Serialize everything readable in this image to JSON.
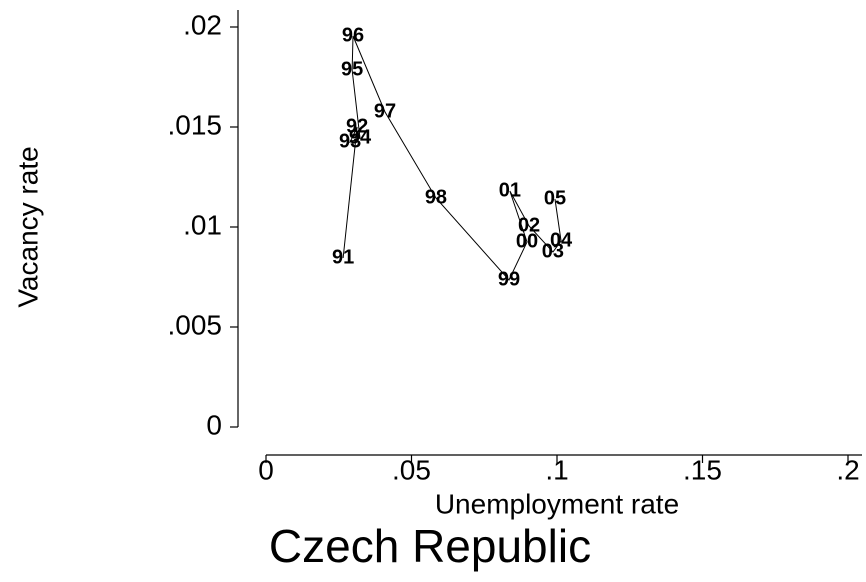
{
  "chart_data": {
    "type": "scatter",
    "connect": true,
    "title": "Czech Republic",
    "x_label": "Unemployment rate",
    "y_label": "Vacancy rate",
    "point_labels": [
      "91",
      "92",
      "93",
      "94",
      "95",
      "96",
      "97",
      "98",
      "99",
      "00",
      "01",
      "02",
      "03",
      "04",
      "05"
    ],
    "x": [
      0.0265,
      0.0313,
      0.0289,
      0.0323,
      0.0296,
      0.0299,
      0.0409,
      0.0584,
      0.0835,
      0.0897,
      0.0838,
      0.0904,
      0.0986,
      0.1014,
      0.0993
    ],
    "values": [
      0.00845,
      0.015,
      0.01425,
      0.01445,
      0.01785,
      0.01955,
      0.01575,
      0.01145,
      0.00735,
      0.00925,
      0.0118,
      0.01005,
      0.00875,
      0.0093,
      0.0114
    ],
    "color": "#000000",
    "xlim": [
      0,
      0.2
    ],
    "ylim": [
      0,
      0.02
    ],
    "xticks": [
      0,
      {
        "value": 0.05,
        "label": ".05"
      },
      {
        "value": 0.1,
        "label": ".1"
      },
      {
        "value": 0.15,
        "label": ".15"
      },
      {
        "value": 0.2,
        "label": ".2"
      }
    ],
    "yticks": [
      0,
      {
        "value": 0.005,
        "label": ".005"
      },
      {
        "value": 0.01,
        "label": ".01"
      },
      {
        "value": 0.015,
        "label": ".015"
      },
      {
        "value": 0.02,
        "label": ".02"
      }
    ]
  }
}
